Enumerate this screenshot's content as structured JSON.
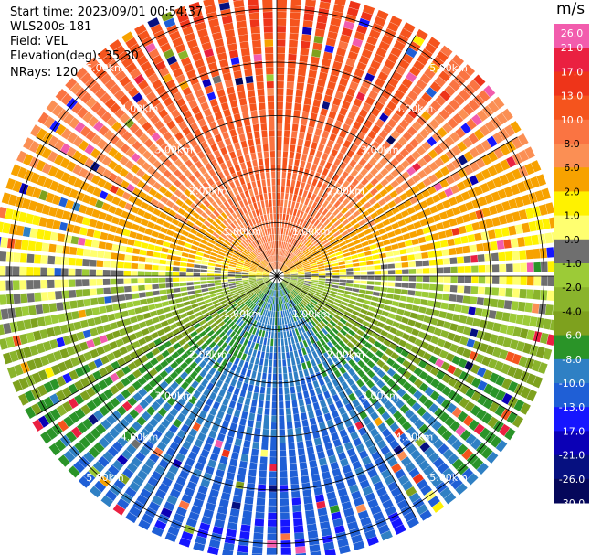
{
  "header": {
    "start_time": "Start time: 2023/09/01 00:54:37",
    "instrument": "WLS200s-181",
    "field": "Field: VEL",
    "elevation": "Elevation(deg): 35.30",
    "nrays": "NRays: 120"
  },
  "chart_data": {
    "type": "heatmap",
    "projection": "polar-ppi",
    "field": "VEL",
    "units": "m/s",
    "nrays": 120,
    "elevation_deg": 35.3,
    "range_rings_km": [
      1.0,
      2.0,
      3.0,
      4.0,
      5.0
    ],
    "ring_labels": [
      "1.00km",
      "2.00km",
      "3.00km",
      "4.00km",
      "5.00km"
    ],
    "max_range_km": 5.2,
    "radial_lines_deg": [
      0,
      30,
      60,
      90,
      120,
      150,
      180,
      210,
      240,
      270,
      300,
      330
    ],
    "velocity_pattern": {
      "max_positive_direction_deg": 0,
      "max_negative_direction_deg": 180,
      "peak_positive_ms": 13,
      "peak_negative_ms": -10,
      "noise_near_edge": true
    },
    "colorbar": {
      "title": "m/s",
      "tick_labels": [
        "26.0",
        "21.0",
        "17.0",
        "13.0",
        "10.0",
        "8.0",
        "6.0",
        "2.0",
        "1.0",
        "0.0",
        "-1.0",
        "-2.0",
        "-4.0",
        "-6.0",
        "-8.0",
        "-10.0",
        "-13.0",
        "-17.0",
        "-21.0",
        "-26.0",
        "-30.0"
      ],
      "colors": [
        "#f25cad",
        "#ea2041",
        "#ee3419",
        "#f5541d",
        "#fa7442",
        "#fb8f54",
        "#f7a200",
        "#fff200",
        "#ffff70",
        "#6f6f6f",
        "#9ccb37",
        "#8ab42c",
        "#7ea11e",
        "#2a9428",
        "#2f80c4",
        "#1f5fd6",
        "#1616ff",
        "#0b00b6",
        "#061080",
        "#05075a"
      ]
    }
  }
}
